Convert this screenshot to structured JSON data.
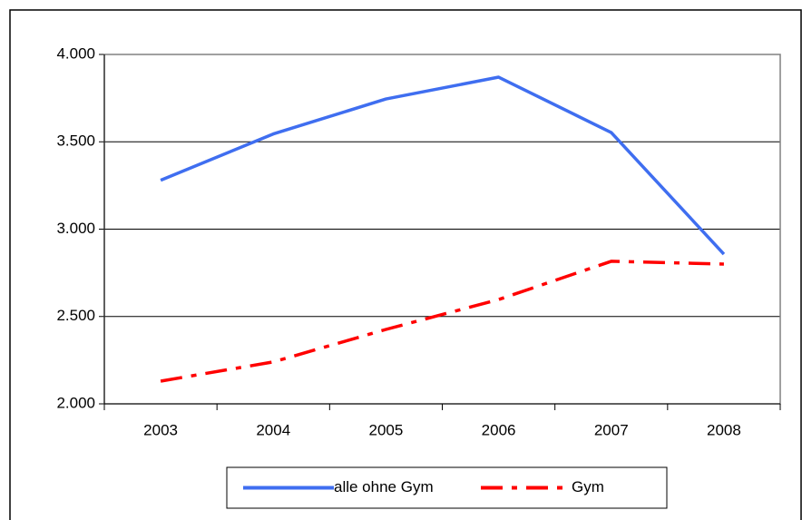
{
  "chart_data": {
    "type": "line",
    "categories": [
      "2003",
      "2004",
      "2005",
      "2006",
      "2007",
      "2008"
    ],
    "series": [
      {
        "name": "alle ohne Gym",
        "color": "#3f6ef0",
        "style": "solid",
        "values": [
          3280,
          3545,
          3745,
          3870,
          3553,
          2857
        ]
      },
      {
        "name": "Gym",
        "color": "#ff0000",
        "style": "dash-dot",
        "values": [
          2130,
          2240,
          2426,
          2597,
          2816,
          2800
        ]
      }
    ],
    "ylim": [
      2000,
      4000
    ],
    "yticks": [
      {
        "value": 2000,
        "label": "2.000"
      },
      {
        "value": 2500,
        "label": "2.500"
      },
      {
        "value": 3000,
        "label": "3.000"
      },
      {
        "value": 3500,
        "label": "3.500"
      },
      {
        "value": 4000,
        "label": "4.000"
      }
    ],
    "grid": true,
    "legend": "bottom"
  }
}
